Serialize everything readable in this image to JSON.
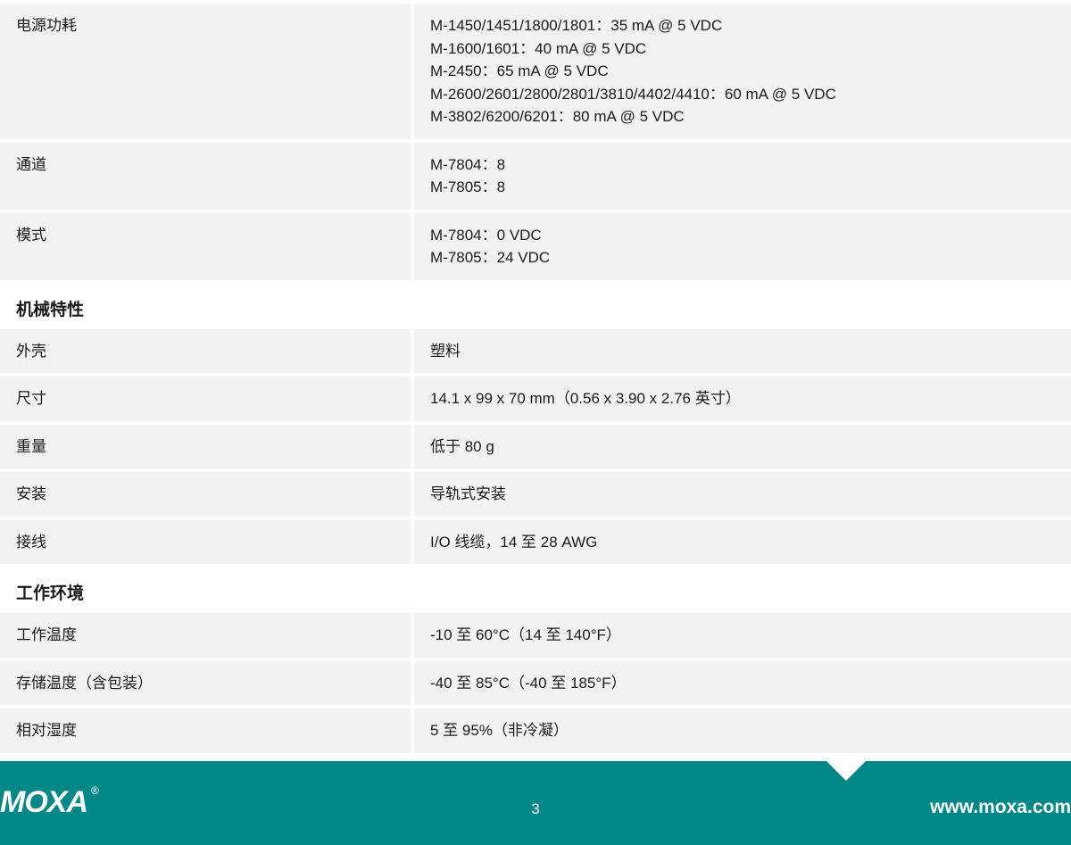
{
  "sections": [
    {
      "rows": [
        {
          "label": "电源功耗",
          "value": "M-1450/1451/1800/1801：35 mA @ 5 VDC\nM-1600/1601：40 mA @ 5 VDC\nM-2450：65 mA @ 5 VDC\nM-2600/2601/2800/2801/3810/4402/4410：60 mA @ 5 VDC\nM-3802/6200/6201：80 mA @ 5 VDC"
        },
        {
          "label": "通道",
          "value": "M-7804：8\nM-7805：8"
        },
        {
          "label": "模式",
          "value": "M-7804：0 VDC\nM-7805：24 VDC"
        }
      ]
    },
    {
      "heading": "机械特性",
      "rows": [
        {
          "label": "外壳",
          "value": "塑料"
        },
        {
          "label": "尺寸",
          "value": "14.1 x 99 x 70 mm（0.56 x 3.90 x 2.76 英寸）"
        },
        {
          "label": "重量",
          "value": "低于 80 g"
        },
        {
          "label": "安装",
          "value": "导轨式安装"
        },
        {
          "label": "接线",
          "value": "I/O 线缆，14 至 28 AWG"
        }
      ]
    },
    {
      "heading": "工作环境",
      "rows": [
        {
          "label": "工作温度",
          "value": "-10 至 60°C（14 至 140°F）"
        },
        {
          "label": "存储温度（含包装）",
          "value": "-40 至 85°C（-40 至 185°F）"
        },
        {
          "label": "相对湿度",
          "value": "5 至 95%（非冷凝）"
        }
      ]
    }
  ],
  "footer": {
    "logo": "MOXA",
    "page": "3",
    "url": "www.moxa.com"
  },
  "colors": {
    "row_bg": "#f2f2f2",
    "footer_bg": "#008787",
    "text": "#1a1a1a",
    "footer_text": "#ffffff"
  }
}
